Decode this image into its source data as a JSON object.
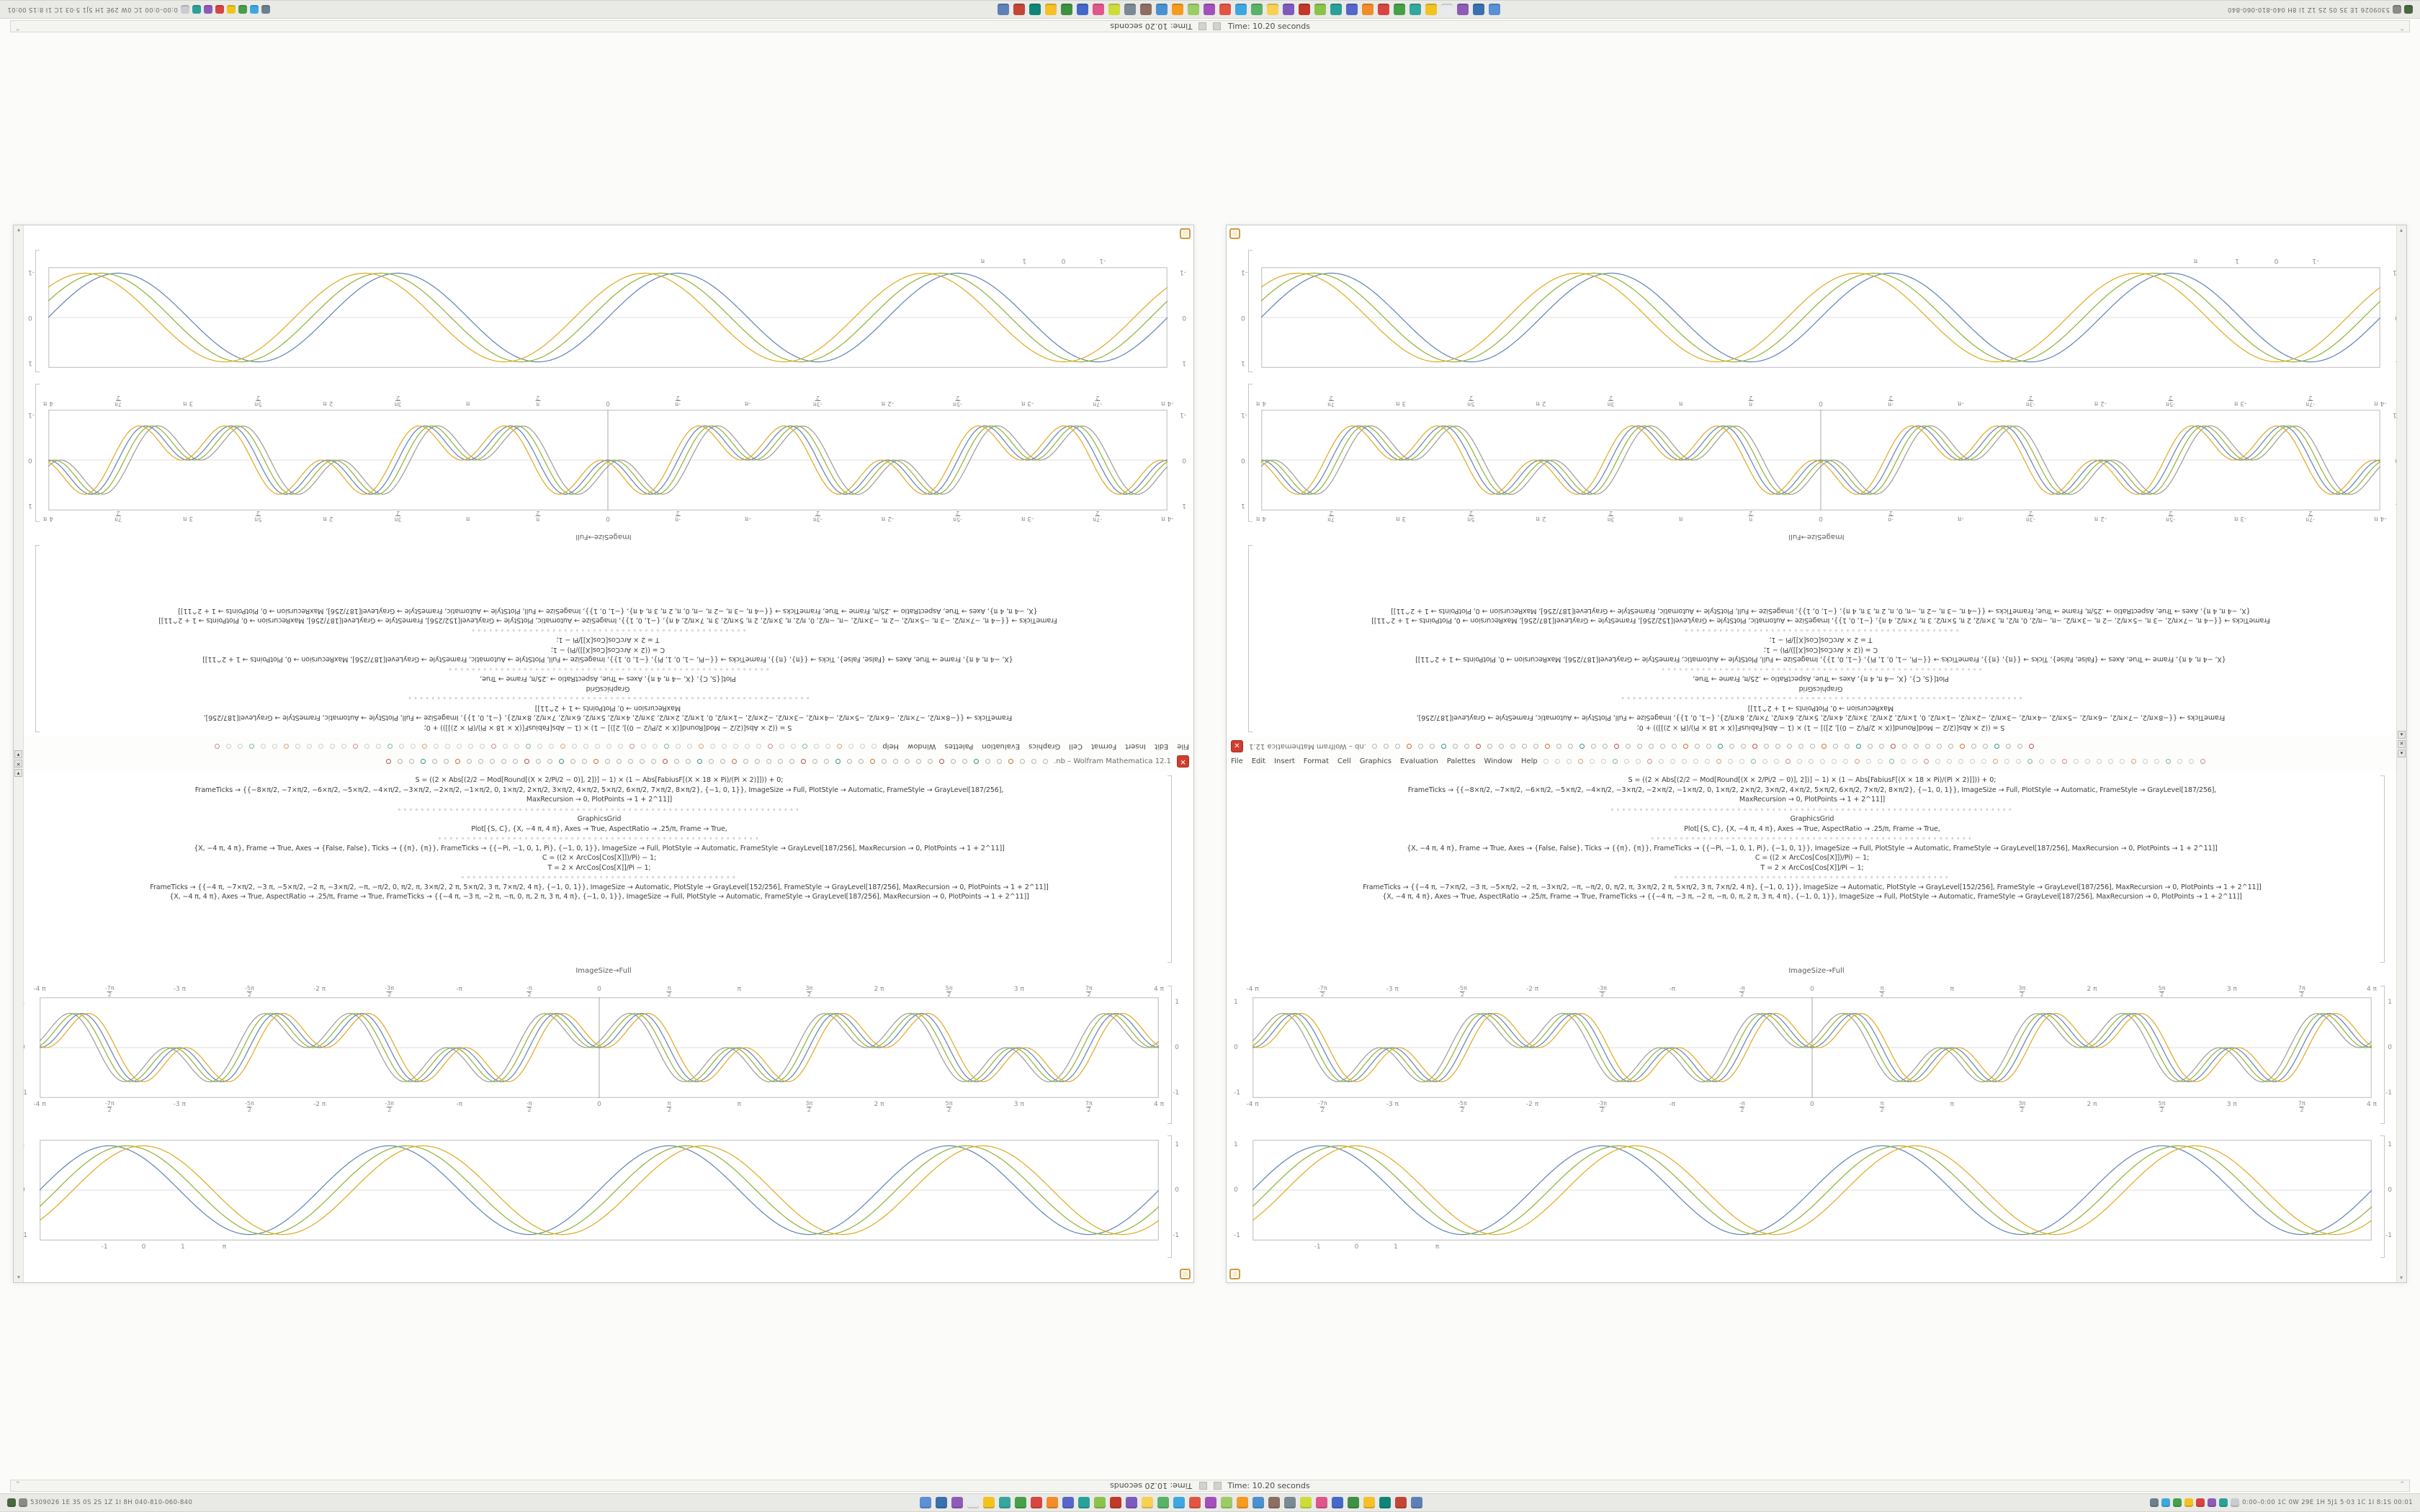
{
  "status": {
    "time_text": "Time: 10.20 seconds",
    "end_glyph": "⌃"
  },
  "taskbar": {
    "left_text": "5309026 1E 3S 0S 2S 1Z 1I 8H 040-810-060-840",
    "right_text": "0:00–0:00 1C 0W 29E 1H 5J1 5·03 1C 1I 8:1S 00:01",
    "left_icon_colors": [
      "#4a6741",
      "#8a8a88"
    ],
    "icon_colors": [
      "#5b8fd6",
      "#3a6fb0",
      "#8e5bb8",
      "#e8eaed",
      "#f2c21f",
      "#35a79c",
      "#45a049",
      "#d64541",
      "#f28c28",
      "#5766c9",
      "#2aa198",
      "#8bc34a",
      "#c0392b",
      "#7d5bbe",
      "#f7d154",
      "#58b368",
      "#3fa7e0",
      "#e05646",
      "#a34fbc",
      "#9ccc65",
      "#f49b20",
      "#4a90d2",
      "#8d6e63",
      "#7a8a94",
      "#cddc39",
      "#e0568c",
      "#4668c8",
      "#3e9142",
      "#f6c026",
      "#0e8577",
      "#c44536",
      "#5e81b5"
    ],
    "right_icon_colors": [
      "#6b7f8e",
      "#3fa7e0",
      "#45a049",
      "#f2c21f",
      "#d64541",
      "#8e5bb8",
      "#2aa198",
      "#c9cdd1"
    ]
  },
  "window": {
    "title": ".nb – Wolfram Mathematica 12.1",
    "close_glyph": "✕",
    "scroll_up_glyph": "▴",
    "scroll_down_glyph": "▾",
    "menu_items": [
      "File",
      "Edit",
      "Insert",
      "Format",
      "Cell",
      "Graphics",
      "Evaluation",
      "Palettes",
      "Window",
      "Help"
    ],
    "cluster_buttons": [
      {
        "glyph": "▾",
        "name": "scrollbar-button-up"
      },
      {
        "glyph": "✕",
        "name": "scrollbar-close-button"
      },
      {
        "glyph": "▾",
        "name": "scrollbar-button-down"
      }
    ],
    "toolbar_dot_palette": [
      "#b3b3b1",
      "#b3b3b1",
      "#b3b3b1",
      "#c87137",
      "#b3b3b1",
      "#b3b3b1",
      "#3a8f8f",
      "#b3b3b1",
      "#b3b3b1",
      "#b45050",
      "#b3b3b1",
      "#b3b3b1"
    ],
    "toolbar_dot_count": 58,
    "captions": {
      "imagesize": "ImageSize→Full"
    },
    "code_lines": [
      {
        "kind": "code",
        "text": "S = ((2 × Abs[(2/2 − Mod[Round[(X × 2/Pi/2 − 0)], 2])] − 1) × (1 − Abs[FabiusF[(X × 18 × Pi)/(Pi × 2)]])) + 0;"
      },
      {
        "kind": "code",
        "text": "FrameTicks → {{−8×π/2, −7×π/2, −6×π/2, −5×π/2, −4×π/2, −3×π/2, −2×π/2, −1×π/2, 0, 1×π/2, 2×π/2, 3×π/2, 4×π/2, 5×π/2, 6×π/2, 7×π/2, 8×π/2}, {−1, 0, 1}}, ImageSize → Full, PlotStyle → Automatic, FrameStyle → GrayLevel[187/256],"
      },
      {
        "kind": "code",
        "text": "MaxRecursion → 0, PlotPoints → 1 + 2^11]]"
      },
      {
        "kind": "dots",
        "text": "∘∘∘∘∘∘∘∘∘∘∘∘∘∘∘∘∘∘∘∘∘∘∘∘∘∘∘∘∘∘∘∘∘∘∘∘∘∘∘∘∘∘∘∘∘∘∘∘∘∘∘∘∘∘∘∘∘∘∘∘∘∘∘∘∘∘∘∘∘∘"
      },
      {
        "kind": "code",
        "text": "GraphicsGrid"
      },
      {
        "kind": "code",
        "text": "Plot[{S, C}, {X, −4 π, 4 π}, Axes → True, AspectRatio → .25/π, Frame → True,"
      },
      {
        "kind": "dots",
        "text": "∘∘∘∘∘∘∘∘∘∘∘∘∘∘∘∘∘∘∘∘∘∘∘∘∘∘∘∘∘∘∘∘∘∘∘∘∘∘∘∘∘∘∘∘∘∘∘∘∘∘∘∘∘∘∘∘"
      },
      {
        "kind": "code",
        "text": "{X, −4 π, 4 π}, Frame → True, Axes → {False, False}, Ticks → {{π}, {π}}, FrameTicks → {{−Pi, −1, 0, 1, Pi}, {−1, 0, 1}}, ImageSize → Full, PlotStyle → Automatic, FrameStyle → GrayLevel[187/256], MaxRecursion → 0, PlotPoints → 1 + 2^11]]"
      },
      {
        "kind": "code",
        "text": "C = ((2 × ArcCos[Cos[X]])/Pi) − 1;"
      },
      {
        "kind": "code",
        "text": "T = 2 × ArcCos[Cos[X]]/Pi − 1;"
      },
      {
        "kind": "dots",
        "text": "∘∘∘∘∘∘∘∘∘∘∘∘∘∘∘∘∘∘∘∘∘∘∘∘∘∘∘∘∘∘∘∘∘∘∘∘∘∘∘∘∘∘∘∘∘∘∘∘"
      },
      {
        "kind": "code",
        "text": "FrameTicks → {{−4 π, −7×π/2, −3 π, −5×π/2, −2 π, −3×π/2, −π, −π/2, 0, π/2, π, 3×π/2, 2 π, 5×π/2, 3 π, 7×π/2, 4 π}, {−1, 0, 1}}, ImageSize → Automatic, PlotStyle → GrayLevel[152/256], FrameStyle → GrayLevel[187/256], MaxRecursion → 0, PlotPoints → 1 + 2^11]]"
      },
      {
        "kind": "code",
        "text": "{X, −4 π, 4 π}, Axes → True, AspectRatio → .25/π, Frame → True, FrameTicks → {{−4 π, −3 π, −2 π, −π, 0, π, 2 π, 3 π, 4 π}, {−1, 0, 1}}, ImageSize → Full, PlotStyle → Automatic, FrameStyle → GrayLevel[187/256], MaxRecursion → 0, PlotPoints → 1 + 2^11]]"
      }
    ]
  },
  "plots": {
    "smooth": {
      "formula": "sin",
      "xmin": -12.566,
      "xmax": 12.566,
      "labels_top": false,
      "center_vline": false,
      "series": [
        {
          "color": "#5e81b5",
          "phase": 0.0
        },
        {
          "color": "#8fb032",
          "phase": -0.38
        },
        {
          "color": "#e0a81e",
          "phase": -0.75
        }
      ],
      "x_ticks": [
        {
          "label": "-1",
          "pos": 0.058
        },
        {
          "label": "0",
          "pos": 0.093
        },
        {
          "label": "1",
          "pos": 0.128
        },
        {
          "label": "π",
          "pos": 0.165
        }
      ],
      "y_ticks": [
        {
          "label": "1",
          "pos": 0.05
        },
        {
          "label": "0",
          "pos": 0.5
        },
        {
          "label": "-1",
          "pos": 0.95
        }
      ]
    },
    "petal": {
      "formula": "sinprod",
      "xmin": -12.566,
      "xmax": 12.566,
      "labels_top": true,
      "center_vline": true,
      "series": [
        {
          "color": "#9a9a9a",
          "p1": 0.55,
          "p2": 0.28
        },
        {
          "color": "#5e81b5",
          "p1": 0.0,
          "p2": 0.0
        },
        {
          "color": "#8fb032",
          "p1": 0.28,
          "p2": 0.14
        },
        {
          "color": "#e0a81e",
          "p1": -0.28,
          "p2": -0.14
        }
      ],
      "x_ticks": [
        {
          "label": "-4 π",
          "pos": 0.0
        },
        {
          "label": "-7π/2",
          "pos": 0.0625
        },
        {
          "label": "-3 π",
          "pos": 0.125
        },
        {
          "label": "-5π/2",
          "pos": 0.1875
        },
        {
          "label": "-2 π",
          "pos": 0.25
        },
        {
          "label": "-3π/2",
          "pos": 0.3125
        },
        {
          "label": "-π",
          "pos": 0.375
        },
        {
          "label": "-π/2",
          "pos": 0.4375
        },
        {
          "label": "0",
          "pos": 0.5
        },
        {
          "label": "π/2",
          "pos": 0.5625
        },
        {
          "label": "π",
          "pos": 0.625
        },
        {
          "label": "3π/2",
          "pos": 0.6875
        },
        {
          "label": "2 π",
          "pos": 0.75
        },
        {
          "label": "5π/2",
          "pos": 0.8125
        },
        {
          "label": "3 π",
          "pos": 0.875
        },
        {
          "label": "7π/2",
          "pos": 0.9375
        },
        {
          "label": "4 π",
          "pos": 1.0
        }
      ],
      "y_ticks": [
        {
          "label": "1",
          "pos": 0.05
        },
        {
          "label": "0",
          "pos": 0.5
        },
        {
          "label": "-1",
          "pos": 0.95
        }
      ]
    }
  }
}
